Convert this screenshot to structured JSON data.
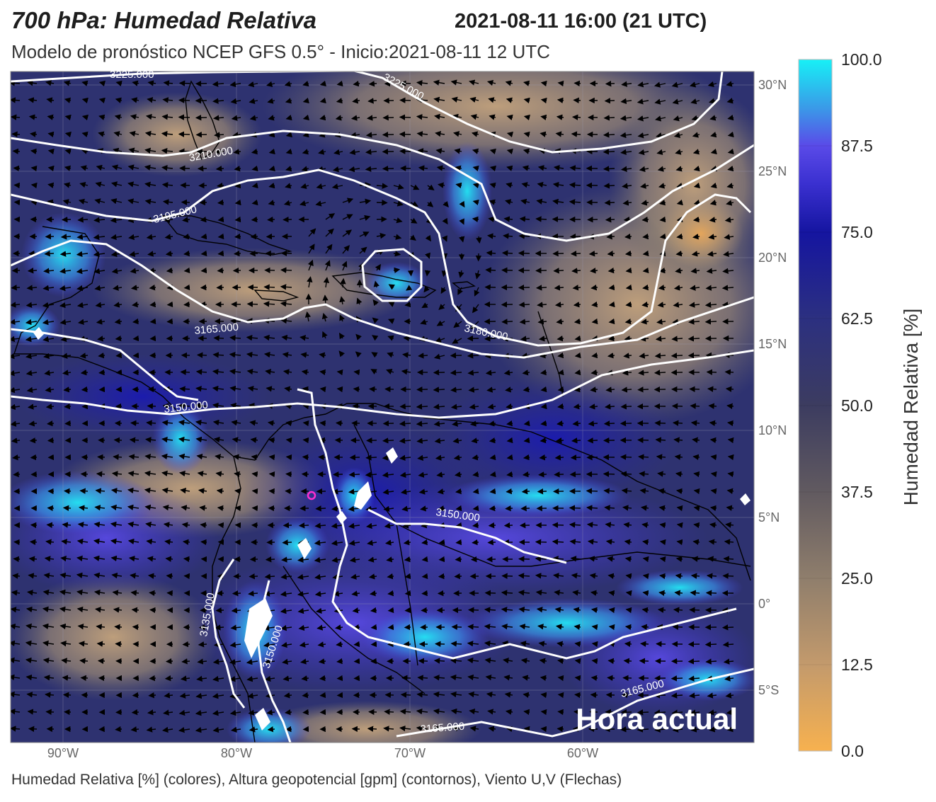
{
  "header": {
    "title": "700 hPa: Humedad Relativa",
    "datetime": "2021-08-11 16:00 (21 UTC)",
    "subtitle": "Modelo de pronóstico NCEP GFS 0.5° - Inicio:2021-08-11 12 UTC"
  },
  "map": {
    "extent": {
      "lon": [
        -93,
        -48.5
      ],
      "lat": [
        -8,
        31
      ]
    },
    "lon_ticks": [
      "90°W",
      "80°W",
      "70°W",
      "60°W"
    ],
    "lat_ticks": [
      "30°N",
      "25°N",
      "20°N",
      "15°N",
      "10°N",
      "5°N",
      "0°",
      "5°S"
    ],
    "contour_labels": [
      "3225.000",
      "3225.000",
      "3210.000",
      "3195.000",
      "3180.000",
      "3165.000",
      "3150.000",
      "3150.000",
      "3150.000",
      "3135.000",
      "3165.000",
      "3165.000"
    ],
    "overlay_text": "Hora actual",
    "marker_color": "#ff2fd0",
    "contour_color": "#ffffff"
  },
  "colorbar": {
    "title": "Humedad Relativa [%]",
    "ticks": [
      "100.0",
      "87.5",
      "75.0",
      "62.5",
      "50.0",
      "37.5",
      "25.0",
      "12.5",
      "0.0"
    ],
    "colors_low_to_high": [
      "#f7b14f",
      "#b89673",
      "#7a7064",
      "#4f4a5e",
      "#2e3570",
      "#1b1ba8",
      "#4a3fe0",
      "#3b8de6",
      "#17e8f6"
    ]
  },
  "footer": {
    "caption": "Humedad Relativa [%] (colores), Altura geopotencial [gpm] (contornos), Viento U,V (Flechas)"
  }
}
